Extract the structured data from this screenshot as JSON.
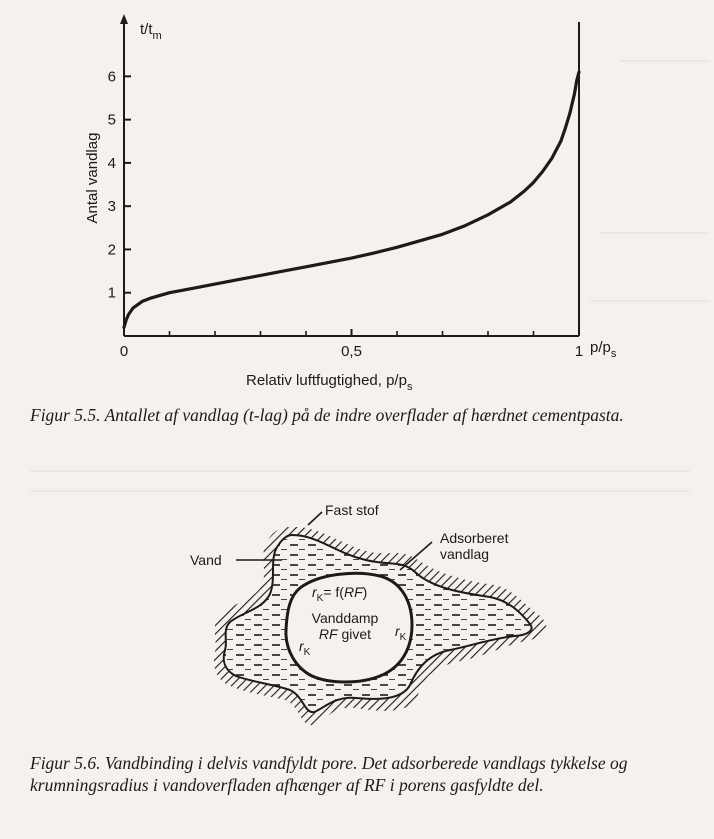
{
  "figure1": {
    "y_axis_title": "t/t",
    "y_axis_title_sub": "m",
    "y_axis_label": "Antal vandlag",
    "x_axis_end_label": "p/p",
    "x_axis_end_label_sub": "s",
    "x_axis_label": "Relativ luftfugtighed, p/p",
    "x_axis_label_sub": "s",
    "caption_prefix": "Figur 5.5.",
    "caption_text": "Antallet af vandlag (t-lag) på de indre overflader af hærdnet cementpasta."
  },
  "chart_data": {
    "type": "line",
    "xlabel": "Relativ luftfugtighed, p/p_s",
    "ylabel": "Antal vandlag",
    "xlim": [
      0,
      1
    ],
    "ylim": [
      0,
      7.2
    ],
    "x_ticks": [
      0,
      0.5,
      1
    ],
    "x_tick_labels": [
      "0",
      "0,5",
      "1"
    ],
    "y_ticks": [
      1,
      2,
      3,
      4,
      5,
      6
    ],
    "y_tick_labels": [
      "1",
      "2",
      "3",
      "4",
      "5",
      "6"
    ],
    "grid": false,
    "series": [
      {
        "x": [
          0.0,
          0.005,
          0.01,
          0.02,
          0.04,
          0.06,
          0.08,
          0.1,
          0.15,
          0.2,
          0.25,
          0.3,
          0.35,
          0.4,
          0.45,
          0.5,
          0.55,
          0.6,
          0.65,
          0.7,
          0.75,
          0.8,
          0.85,
          0.88,
          0.9,
          0.92,
          0.94,
          0.96,
          0.97,
          0.98,
          0.99,
          0.995,
          1.0
        ],
        "values": [
          0.2,
          0.38,
          0.5,
          0.65,
          0.8,
          0.88,
          0.94,
          1.0,
          1.1,
          1.2,
          1.3,
          1.4,
          1.5,
          1.6,
          1.7,
          1.8,
          1.92,
          2.05,
          2.2,
          2.35,
          2.55,
          2.8,
          3.1,
          3.35,
          3.55,
          3.8,
          4.1,
          4.5,
          4.8,
          5.15,
          5.6,
          5.9,
          6.1
        ]
      }
    ]
  },
  "figure2": {
    "label_solid": "Fast stof",
    "label_water": "Vand",
    "label_adsorbed_1": "Adsorberet",
    "label_adsorbed_2": "vandlag",
    "label_rk_formula_r": "r",
    "label_rk_formula_sub": "K",
    "label_rk_formula_rest": "= f(",
    "label_rk_formula_rf": "RF",
    "label_rk_formula_close": ")",
    "label_vapour_1": "Vanddamp",
    "label_vapour_2_rf": "RF",
    "label_vapour_2_rest": " givet",
    "label_rk_right_r": "r",
    "label_rk_right_sub": "K",
    "label_rk_left_r": "r",
    "label_rk_left_sub": "K",
    "caption_prefix": "Figur 5.6.",
    "caption_text_1": "Vandbinding i delvis vandfyldt pore. Det adsorberede vandlags tykkelse og krumningsradius i vandoverfladen afhænger af ",
    "caption_rf": "RF",
    "caption_text_2": " i porens gasfyldte del."
  }
}
